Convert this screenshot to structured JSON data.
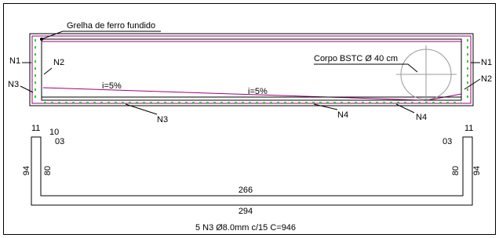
{
  "section": {
    "grate_label": "Grelha de ferro fundido",
    "n1_left": "N1",
    "n2_left": "N2",
    "n3_left": "N3",
    "slope_left": "i=5%",
    "slope_right": "i=5%",
    "pipe_label": "Corpo BSTC Ø 40 cm",
    "n1_right": "N1",
    "n2_right": "N2",
    "n3_bottom": "N3",
    "n4_mid": "N4",
    "n4_right": "N4"
  },
  "rebar": {
    "left_top": "11",
    "left_hook": "10",
    "left_cover": "03",
    "left_outer": "94",
    "left_inner": "80",
    "inner_length": "266",
    "outer_length": "294",
    "right_top": "11",
    "right_cover": "03",
    "right_inner": "80",
    "right_outer": "94",
    "caption": "5 N3 Ø8.0mm c/15 C=946"
  }
}
